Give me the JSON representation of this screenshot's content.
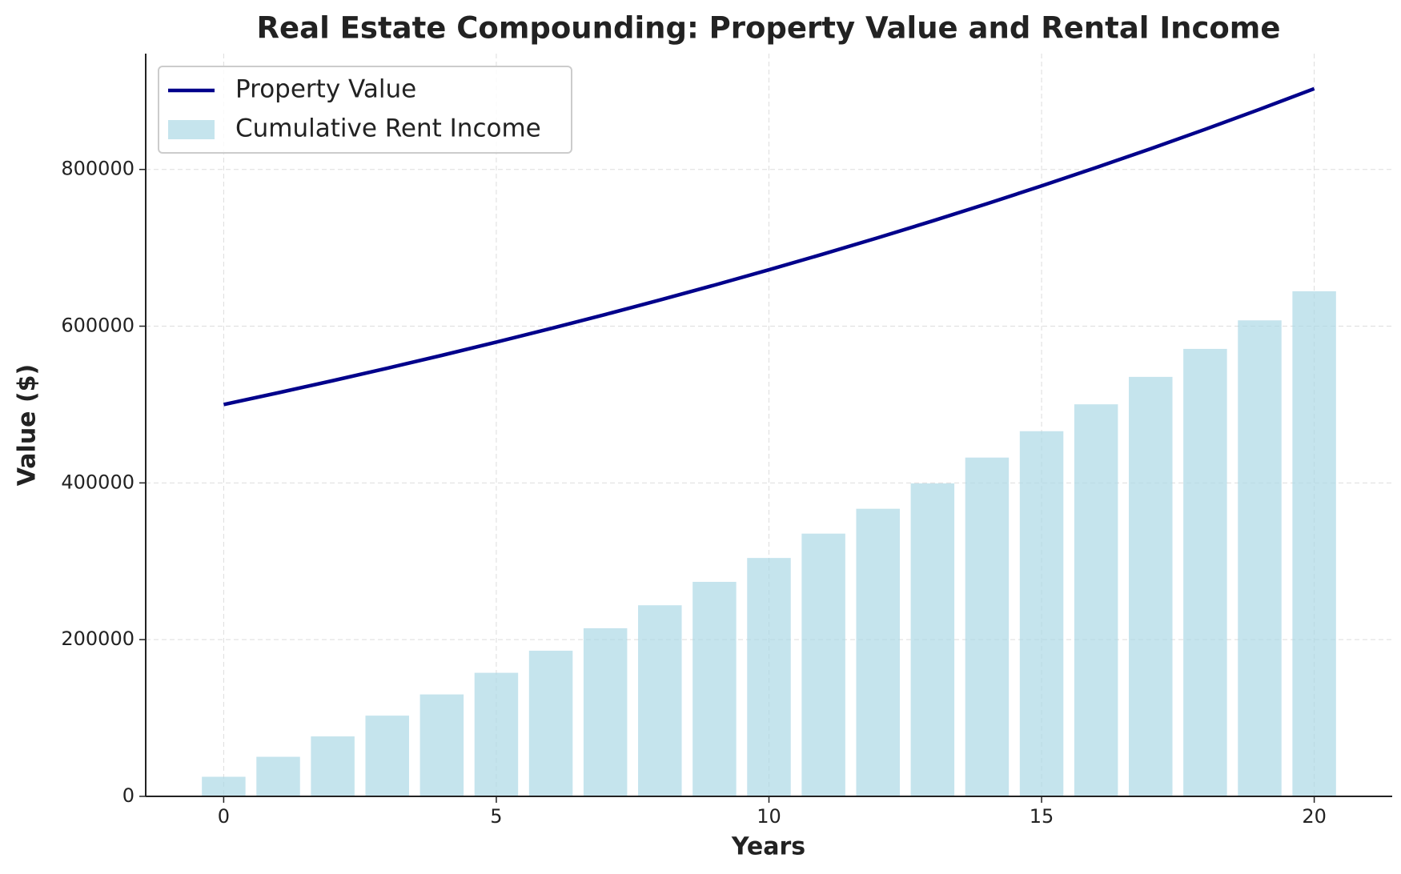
{
  "chart_data": {
    "type": "combo",
    "title": "Real Estate Compounding: Property Value and Rental Income",
    "x_label": "Years",
    "y_label": "Value ($)",
    "x": [
      0,
      1,
      2,
      3,
      4,
      5,
      6,
      7,
      8,
      9,
      10,
      11,
      12,
      13,
      14,
      15,
      16,
      17,
      18,
      19,
      20
    ],
    "series": [
      {
        "name": "Property Value",
        "type": "line",
        "color": "#00008b",
        "values": [
          500000,
          515000,
          530450,
          546364,
          562754,
          579637,
          597026,
          614937,
          633385,
          652387,
          671958,
          692117,
          712880,
          734267,
          756295,
          778984,
          802353,
          826424,
          851216,
          876753,
          903056
        ]
      },
      {
        "name": "Cumulative Rent Income",
        "type": "bar",
        "color": "#add8e6",
        "values": [
          25000,
          50500,
          76510,
          103040,
          130101,
          157703,
          185857,
          214574,
          243866,
          273743,
          304218,
          335302,
          367008,
          399348,
          432335,
          465982,
          500301,
          535307,
          571013,
          607433,
          644581
        ]
      }
    ],
    "xlim": [
      -1.43,
      21.43
    ],
    "ylim": [
      0,
      947800
    ],
    "xticks": [
      0,
      5,
      10,
      15,
      20
    ],
    "yticks": [
      0,
      200000,
      400000,
      600000,
      800000
    ],
    "grid": true,
    "legend": "upper left"
  }
}
